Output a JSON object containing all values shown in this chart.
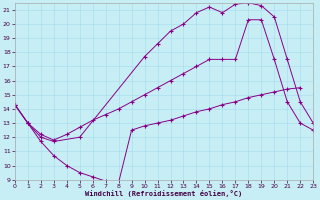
{
  "xlabel": "Windchill (Refroidissement éolien,°C)",
  "bg_color": "#c8eef5",
  "line_color": "#880088",
  "grid_color": "#b0d8e0",
  "xlim": [
    0,
    23
  ],
  "ylim": [
    9,
    21.5
  ],
  "xticks": [
    0,
    1,
    2,
    3,
    4,
    5,
    6,
    7,
    8,
    9,
    10,
    11,
    12,
    13,
    14,
    15,
    16,
    17,
    18,
    19,
    20,
    21,
    22,
    23
  ],
  "yticks": [
    9,
    10,
    11,
    12,
    13,
    14,
    15,
    16,
    17,
    18,
    19,
    20,
    21
  ],
  "curveA_x": [
    0,
    1,
    2,
    3,
    4,
    5,
    6,
    7,
    8,
    9,
    10,
    11,
    12,
    13,
    14,
    15,
    16,
    17,
    18,
    19,
    20,
    21,
    22,
    23
  ],
  "curveA_y": [
    14.3,
    13.0,
    11.7,
    10.7,
    10.0,
    9.5,
    9.2,
    8.9,
    8.8,
    12.5,
    12.8,
    13.0,
    13.2,
    13.5,
    13.8,
    14.0,
    14.3,
    14.5,
    14.8,
    15.0,
    15.2,
    15.4,
    15.5,
    null
  ],
  "curveB_x": [
    0,
    1,
    2,
    3,
    4,
    5,
    6,
    7,
    8,
    9,
    10,
    11,
    12,
    13,
    14,
    15,
    16,
    17,
    18,
    19,
    20,
    21,
    22,
    23
  ],
  "curveB_y": [
    14.3,
    13.0,
    12.2,
    11.8,
    12.2,
    12.7,
    13.2,
    13.6,
    14.0,
    14.5,
    15.0,
    15.5,
    16.0,
    16.5,
    17.0,
    17.5,
    17.5,
    17.5,
    20.3,
    20.3,
    17.5,
    14.5,
    13.0,
    12.5
  ],
  "curveC_x": [
    0,
    1,
    2,
    3,
    5,
    10,
    11,
    12,
    13,
    14,
    15,
    16,
    17,
    18,
    19,
    20,
    21,
    22,
    23
  ],
  "curveC_y": [
    14.3,
    13.0,
    12.0,
    11.7,
    12.0,
    17.7,
    18.6,
    19.5,
    20.0,
    20.8,
    21.2,
    20.8,
    21.4,
    21.5,
    21.3,
    20.5,
    17.5,
    14.5,
    13.0
  ]
}
